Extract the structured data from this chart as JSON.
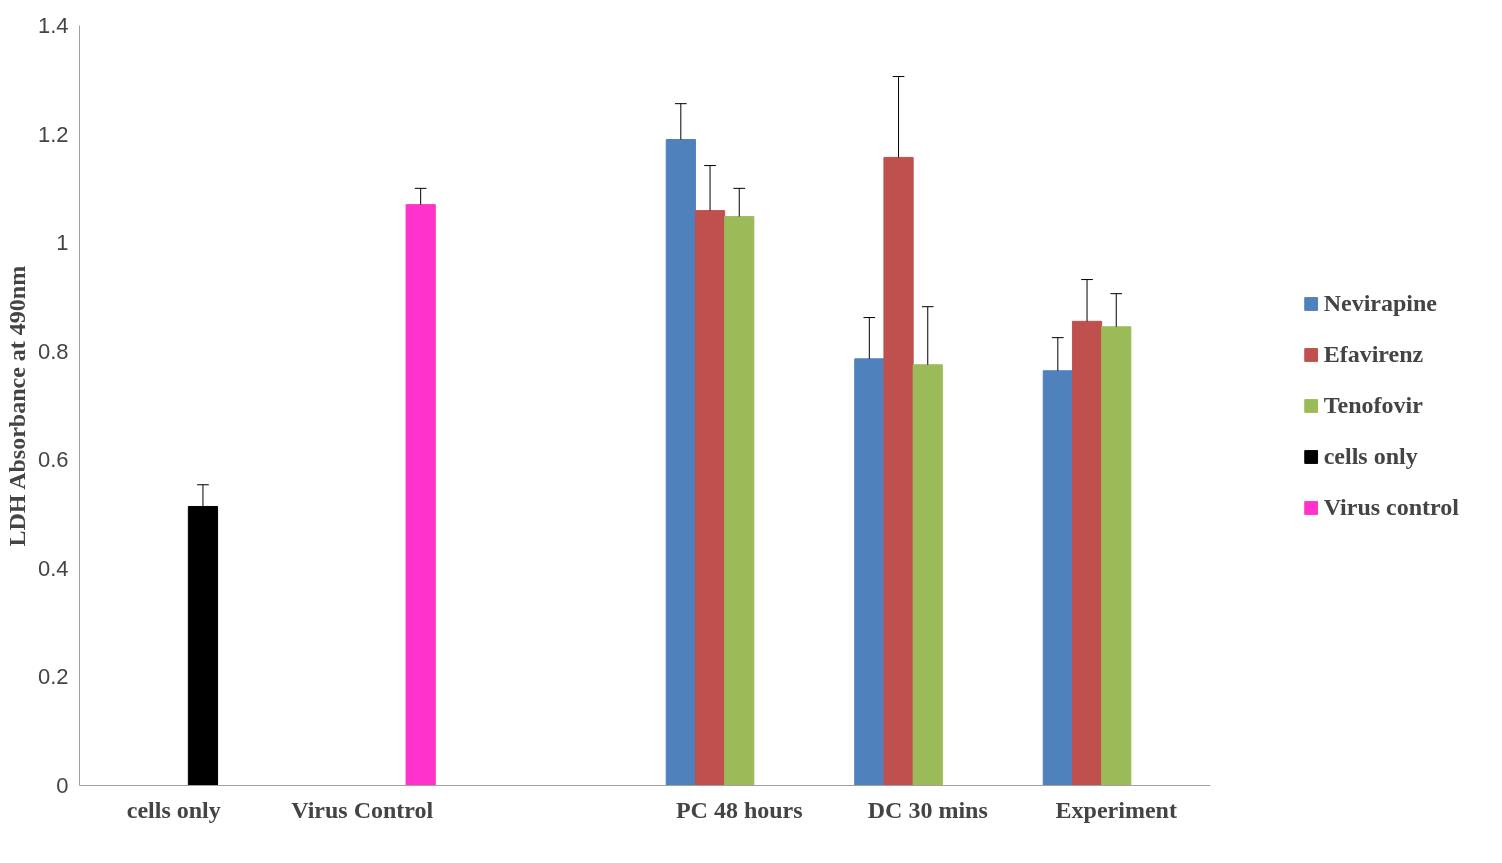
{
  "chart_data": {
    "type": "bar",
    "ylabel": "LDH Absorbance at 490nm",
    "categories": [
      "cells only",
      "Virus Control",
      null,
      "PC 48 hours",
      "DC 30 mins",
      "Experiment"
    ],
    "ylim": [
      0,
      1.4
    ],
    "yticks": [
      0,
      0.2,
      0.4,
      0.6,
      0.8,
      1,
      1.2,
      1.4
    ],
    "grid": false,
    "legend": "right",
    "series": [
      {
        "name": "Nevirapine",
        "color": "#4f81bd",
        "values": [
          null,
          null,
          null,
          1.19,
          0.786,
          0.764
        ],
        "errors": [
          null,
          null,
          null,
          [
            1.19,
            1.256
          ],
          [
            0.786,
            0.862
          ],
          [
            0.764,
            0.825
          ]
        ]
      },
      {
        "name": "Efavirenz",
        "color": "#c0504d",
        "values": [
          null,
          null,
          null,
          1.059,
          1.157,
          0.855
        ],
        "errors": [
          null,
          null,
          null,
          [
            1.059,
            1.142
          ],
          [
            1.157,
            1.306
          ],
          [
            0.855,
            0.932
          ]
        ]
      },
      {
        "name": "Tenofovir",
        "color": "#9bbb59",
        "values": [
          null,
          null,
          null,
          1.048,
          0.775,
          0.845
        ],
        "errors": [
          null,
          null,
          null,
          [
            1.048,
            1.1
          ],
          [
            0.775,
            0.882
          ],
          [
            0.845,
            0.906
          ]
        ]
      },
      {
        "name": "cells only",
        "color": "#000000",
        "values": [
          0.514,
          null,
          null,
          null,
          null,
          null
        ],
        "errors": [
          [
            0.514,
            0.554
          ],
          null,
          null,
          null,
          null,
          null
        ]
      },
      {
        "name": "Virus control",
        "color": "#ff33cc",
        "values": [
          null,
          1.07,
          null,
          null,
          null,
          null
        ],
        "errors": [
          null,
          [
            1.07,
            1.1
          ],
          null,
          null,
          null,
          null
        ]
      }
    ]
  }
}
